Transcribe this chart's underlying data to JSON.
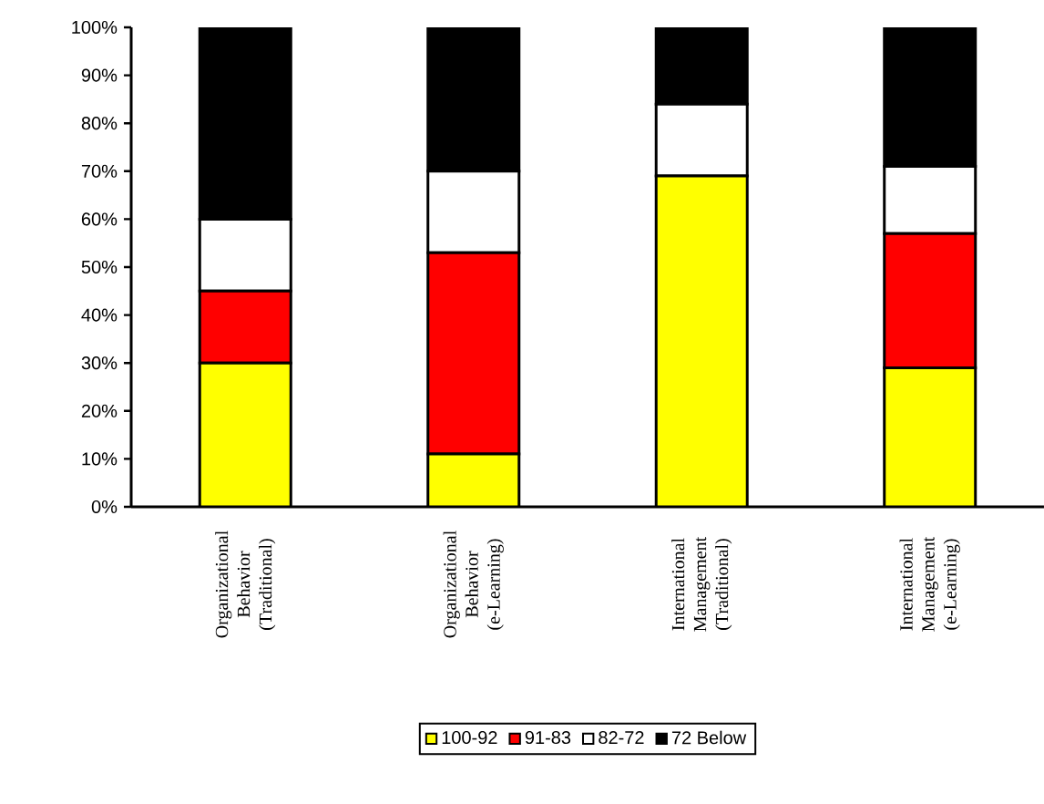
{
  "chart_data": {
    "type": "bar",
    "stacked": true,
    "categories": [
      "Organizational Behavior (Traditional)",
      "Organizational Behavior (e-Learning)",
      "International Management (Traditional)",
      "International Management (e-Learning)"
    ],
    "series": [
      {
        "name": "100-92",
        "color": "#ffff00",
        "values": [
          30,
          11,
          69,
          29
        ]
      },
      {
        "name": "91-83",
        "color": "#ff0000",
        "values": [
          15,
          42,
          0,
          28
        ]
      },
      {
        "name": "82-72",
        "color": "#ffffff",
        "values": [
          15,
          17,
          15,
          14
        ]
      },
      {
        "name": "72 Below",
        "color": "#000000",
        "values": [
          40,
          30,
          16,
          29
        ]
      }
    ],
    "ylim": [
      0,
      100
    ],
    "yticks": [
      {
        "value": 0,
        "label": "0%"
      },
      {
        "value": 10,
        "label": "10%"
      },
      {
        "value": 20,
        "label": "20%"
      },
      {
        "value": 30,
        "label": "30%"
      },
      {
        "value": 40,
        "label": "40%"
      },
      {
        "value": 50,
        "label": "50%"
      },
      {
        "value": 60,
        "label": "60%"
      },
      {
        "value": 70,
        "label": "70%"
      },
      {
        "value": 80,
        "label": "80%"
      },
      {
        "value": 90,
        "label": "90%"
      },
      {
        "value": 100,
        "label": "100%"
      }
    ],
    "grid": false,
    "legend": "bottom"
  }
}
